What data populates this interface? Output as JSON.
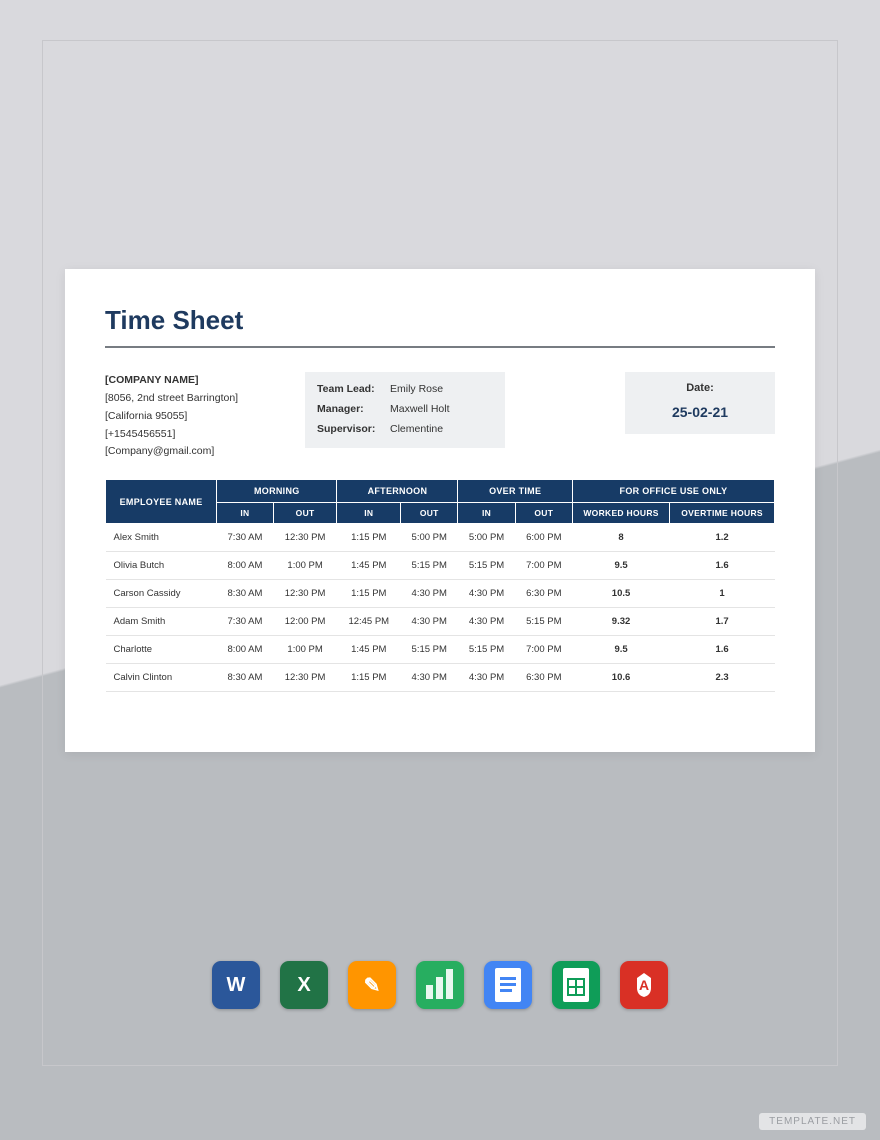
{
  "document": {
    "title": "Time Sheet",
    "company": {
      "name": "[COMPANY NAME]",
      "address1": "[8056, 2nd street Barrington]",
      "address2": "[California 95055]",
      "phone": "[+1545456551]",
      "email": "[Company@gmail.com]"
    },
    "leads": {
      "team_lead_label": "Team Lead:",
      "team_lead_value": "Emily Rose",
      "manager_label": "Manager:",
      "manager_value": "Maxwell Holt",
      "supervisor_label": "Supervisor:",
      "supervisor_value": "Clementine"
    },
    "date": {
      "label": "Date:",
      "value": "25-02-21"
    }
  },
  "table": {
    "header_bg": "#173b66",
    "header_text": "#ffffff",
    "columns": {
      "employee_name": "EMPLOYEE NAME",
      "morning": "MORNING",
      "afternoon": "AFTERNOON",
      "overtime": "OVER TIME",
      "office_use": "FOR OFFICE USE ONLY",
      "in": "IN",
      "out": "OUT",
      "worked_hours": "WORKED HOURS",
      "overtime_hours": "OVERTIME HOURS"
    },
    "rows": [
      {
        "name": "Alex Smith",
        "m_in": "7:30 AM",
        "m_out": "12:30 PM",
        "a_in": "1:15 PM",
        "a_out": "5:00 PM",
        "o_in": "5:00 PM",
        "o_out": "6:00 PM",
        "worked": "8",
        "ot": "1.2"
      },
      {
        "name": "Olivia Butch",
        "m_in": "8:00 AM",
        "m_out": "1:00 PM",
        "a_in": "1:45 PM",
        "a_out": "5:15 PM",
        "o_in": "5:15 PM",
        "o_out": "7:00 PM",
        "worked": "9.5",
        "ot": "1.6"
      },
      {
        "name": "Carson Cassidy",
        "m_in": "8:30 AM",
        "m_out": "12:30 PM",
        "a_in": "1:15 PM",
        "a_out": "4:30 PM",
        "o_in": "4:30 PM",
        "o_out": "6:30 PM",
        "worked": "10.5",
        "ot": "1"
      },
      {
        "name": "Adam Smith",
        "m_in": "7:30 AM",
        "m_out": "12:00 PM",
        "a_in": "12:45 PM",
        "a_out": "4:30 PM",
        "o_in": "4:30 PM",
        "o_out": "5:15 PM",
        "worked": "9.32",
        "ot": "1.7"
      },
      {
        "name": "Charlotte",
        "m_in": "8:00 AM",
        "m_out": "1:00 PM",
        "a_in": "1:45 PM",
        "a_out": "5:15 PM",
        "o_in": "5:15 PM",
        "o_out": "7:00 PM",
        "worked": "9.5",
        "ot": "1.6"
      },
      {
        "name": "Calvin Clinton",
        "m_in": "8:30 AM",
        "m_out": "12:30 PM",
        "a_in": "1:15 PM",
        "a_out": "4:30 PM",
        "o_in": "4:30 PM",
        "o_out": "6:30 PM",
        "worked": "10.6",
        "ot": "2.3"
      }
    ]
  },
  "icons": [
    {
      "name": "word-icon",
      "bg": "#2b579a",
      "letter": "W"
    },
    {
      "name": "excel-icon",
      "bg": "#217346",
      "letter": "X"
    },
    {
      "name": "pages-icon",
      "bg": "#ff9500",
      "letter": "✎"
    },
    {
      "name": "numbers-icon",
      "bg": "#27ae60",
      "letter": ""
    },
    {
      "name": "gdocs-icon",
      "bg": "#4285f4",
      "letter": ""
    },
    {
      "name": "gsheets-icon",
      "bg": "#0f9d58",
      "letter": ""
    },
    {
      "name": "pdf-icon",
      "bg": "#d93025",
      "letter": "A"
    }
  ],
  "watermark": "TEMPLATE.NET"
}
